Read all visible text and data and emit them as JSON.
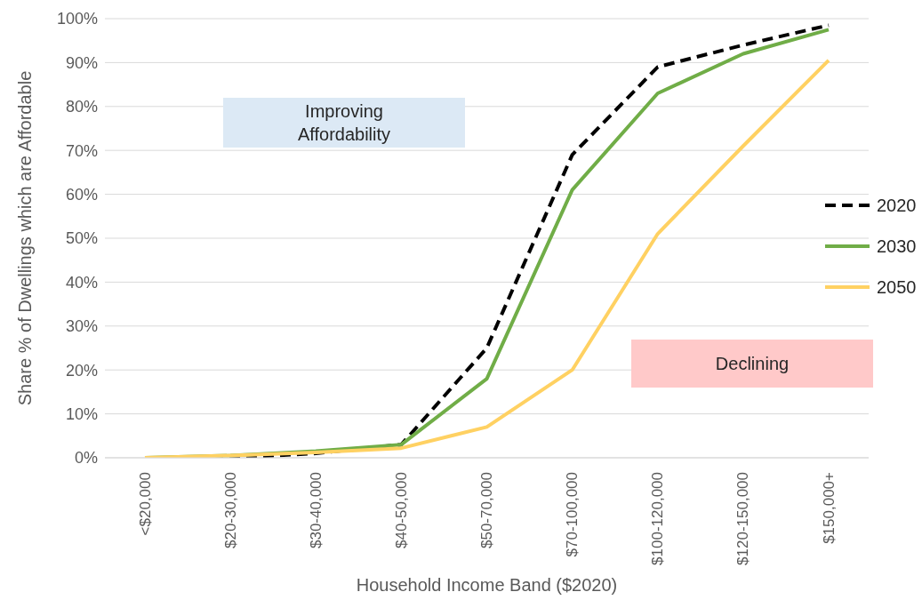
{
  "chart_data": {
    "type": "line",
    "xlabel": "Household  Income Band ($2020)",
    "ylabel": "Share % of Dwellings which are Affordable",
    "categories": [
      "<$20,000",
      "$20-30,000",
      "$30-40,000",
      "$40-50,000",
      "$50-70,000",
      "$70-100,000",
      "$100-120,000",
      "$120-150,000",
      "$150,000+"
    ],
    "series": [
      {
        "name": "2020",
        "color": "#000000",
        "line_style": "dashed",
        "values": [
          0,
          0,
          1,
          3,
          25,
          69,
          89,
          94,
          98.5
        ]
      },
      {
        "name": "2030",
        "color": "#70ad47",
        "line_style": "solid",
        "values": [
          0,
          0.5,
          1.5,
          3,
          18,
          61,
          83,
          92,
          97.5
        ]
      },
      {
        "name": "2050",
        "color": "#ffd162",
        "line_style": "solid",
        "values": [
          0,
          0.5,
          1.2,
          2.2,
          7,
          20,
          51,
          71,
          90.5
        ]
      }
    ],
    "ylim": [
      0,
      100
    ],
    "yticks": [
      {
        "value": 0,
        "label": "0%"
      },
      {
        "value": 10,
        "label": "10%"
      },
      {
        "value": 20,
        "label": "20%"
      },
      {
        "value": 30,
        "label": "30%"
      },
      {
        "value": 40,
        "label": "40%"
      },
      {
        "value": 50,
        "label": "50%"
      },
      {
        "value": 60,
        "label": "60%"
      },
      {
        "value": 70,
        "label": "70%"
      },
      {
        "value": 80,
        "label": "80%"
      },
      {
        "value": 90,
        "label": "90%"
      },
      {
        "value": 100,
        "label": "100%"
      }
    ],
    "annotations": [
      "Improving Affordability",
      "Declining"
    ],
    "grid": "y",
    "legend": "right",
    "marker": "none"
  }
}
